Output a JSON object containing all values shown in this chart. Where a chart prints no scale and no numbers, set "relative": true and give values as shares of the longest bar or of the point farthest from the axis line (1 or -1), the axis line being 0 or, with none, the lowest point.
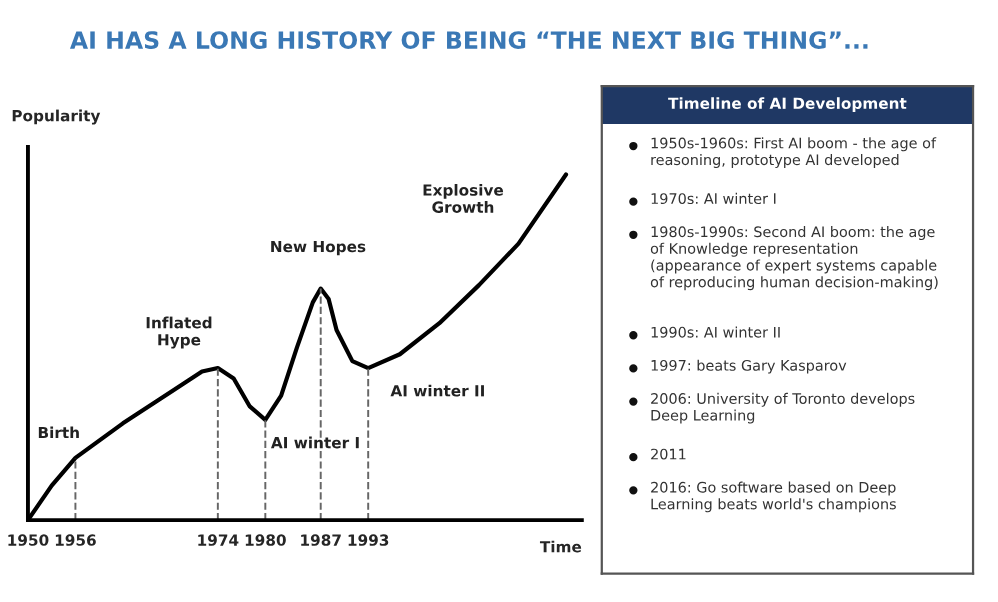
{
  "chart_data": [
    {
      "type": "line",
      "title": "AI HAS A LONG HISTORY OF BEING “THE NEXT BIG THING”...",
      "xlabel": "Time",
      "ylabel": "Popularity",
      "relative": true,
      "series": [
        {
          "color": "#000000",
          "x": [
            1950,
            1953,
            1956,
            1962,
            1968,
            1972,
            1974,
            1976,
            1978,
            1980,
            1982,
            1984,
            1986,
            1987,
            1988,
            1989,
            1991,
            1993,
            1997,
            2002,
            2007,
            2012,
            2018
          ],
          "values": [
            0,
            0.1,
            0.18,
            0.28,
            0.37,
            0.43,
            0.44,
            0.41,
            0.33,
            0.29,
            0.36,
            0.5,
            0.63,
            0.67,
            0.64,
            0.55,
            0.46,
            0.44,
            0.48,
            0.57,
            0.68,
            0.8,
            1.0
          ]
        }
      ],
      "xlim": [
        1950,
        2020
      ],
      "xticks": [
        1950,
        1956,
        1974,
        1980,
        1987,
        1993
      ],
      "tick_labels": "x",
      "grid": false,
      "legend": false,
      "line_style": "solid",
      "marker": "none",
      "ref_lines": [
        {
          "axis": "x",
          "value": 1956,
          "line_style": "dashed"
        },
        {
          "axis": "x",
          "value": 1974,
          "line_style": "dashed"
        },
        {
          "axis": "x",
          "value": 1980,
          "line_style": "dashed"
        },
        {
          "axis": "x",
          "value": 1987,
          "line_style": "dashed"
        },
        {
          "axis": "x",
          "value": 1993,
          "line_style": "dashed"
        }
      ],
      "annotations": [
        {
          "text": "Birth",
          "x": 1956,
          "y": 0.18
        },
        {
          "text": "Inflated\nHype",
          "x": 1974,
          "y": 0.44
        },
        {
          "text": "AI winter I",
          "x": 1980,
          "y": 0.29
        },
        {
          "text": "New Hopes",
          "x": 1987,
          "y": 0.67
        },
        {
          "text": "AI winter II",
          "x": 1993,
          "y": 0.44
        },
        {
          "text": "Explosive\nGrowth",
          "x": 2012,
          "y": 0.8
        }
      ]
    },
    {
      "type": "other",
      "title": "Timeline of AI Development",
      "annotations": [
        "1950s-1960s: First AI boom - the age of reasoning, prototype AI developed",
        "1970s: AI winter I",
        "1980s-1990s: Second AI boom: the age of Knowledge representation (appearance of expert systems capable of reproducing human decision-making)",
        "1990s: AI winter II",
        "1997: beats Gary Kasparov",
        "2006: University of Toronto develops Deep Learning",
        "2011",
        "2016: Go software based on Deep Learning beats world's champions"
      ]
    }
  ]
}
